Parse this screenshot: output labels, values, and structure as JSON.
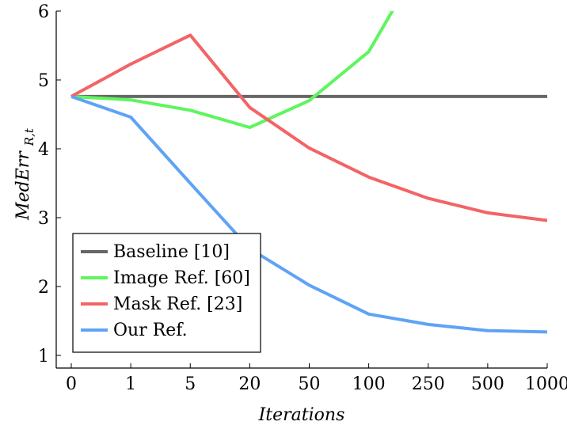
{
  "chart_data": {
    "type": "line",
    "title": "",
    "xlabel": "Iterations",
    "ylabel": "MedErr",
    "ylabel_subscript": "R,t",
    "categories": [
      "0",
      "1",
      "5",
      "20",
      "50",
      "100",
      "250",
      "500",
      "1000"
    ],
    "ylim": [
      1,
      6
    ],
    "yticks": [
      "1",
      "2",
      "3",
      "4",
      "5",
      "6"
    ],
    "grid": false,
    "legend_position": "bottom-left",
    "series": [
      {
        "name": "Baseline [10]",
        "color": "#666666",
        "values": [
          4.76,
          4.76,
          4.76,
          4.76,
          4.76,
          4.76,
          4.76,
          4.76,
          4.76
        ]
      },
      {
        "name": "Image Ref. [60]",
        "color": "#5ef55e",
        "values": [
          4.76,
          4.71,
          4.56,
          4.31,
          4.7,
          5.41,
          6.9,
          null,
          null
        ]
      },
      {
        "name": "Mask Ref. [23]",
        "color": "#f26466",
        "values": [
          4.76,
          5.23,
          5.65,
          4.6,
          4.01,
          3.59,
          3.28,
          3.07,
          2.96
        ]
      },
      {
        "name": "Our Ref.",
        "color": "#5fa3f5",
        "values": [
          4.76,
          4.46,
          3.5,
          2.55,
          2.02,
          1.6,
          1.45,
          1.36,
          1.34
        ]
      }
    ]
  }
}
